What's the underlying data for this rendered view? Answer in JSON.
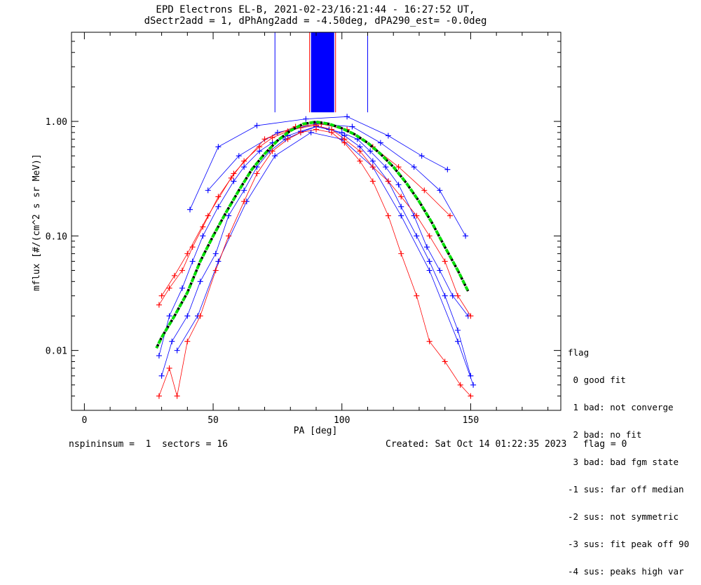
{
  "title_line1": "EPD Electrons EL-B, 2021-02-23/16:21:44 - 16:27:52 UT,",
  "title_line2": "dSectr2add = 1, dPhAng2add = -4.50deg, dPA290_est=  -0.0deg",
  "footer": {
    "left": "nspininsum =  1  sectors = 16",
    "right": "Created: Sat Oct 14 01:22:35 2023   flag = 0"
  },
  "legend": {
    "title": "flag",
    "items": [
      " 0 good fit",
      " 1 bad: not converge",
      " 2 bad: no fit",
      " 3 bad: bad fgm state",
      "-1 sus: far off median",
      "-2 sus: not symmetric",
      "-3 sus: fit peak off 90",
      "-4 sus: peaks high var"
    ]
  },
  "colors": {
    "series_a": "#0000ff",
    "series_b": "#ff0000",
    "fit": "#00dd00",
    "fit_dash": "#000000",
    "axes": "#000000"
  },
  "chart_data": {
    "type": "line",
    "xlabel": "PA [deg]",
    "ylabel": "mflux [#/(cm^2 s sr MeV)]",
    "xlim": [
      -5,
      185
    ],
    "ylim": [
      0.003,
      6
    ],
    "yscale": "log",
    "xticks": [
      0,
      50,
      100,
      150
    ],
    "xtick_labels": [
      "0",
      "50",
      "100",
      "150"
    ],
    "yticks": [
      0.01,
      0.1,
      1.0
    ],
    "ytick_labels": [
      "0.01",
      "0.10",
      "1.00"
    ],
    "grid": false,
    "series": [
      {
        "color": "blue",
        "points": [
          [
            29,
            0.009
          ],
          [
            33,
            0.02
          ],
          [
            38,
            0.035
          ],
          [
            42,
            0.06
          ],
          [
            46,
            0.1
          ],
          [
            52,
            0.18
          ],
          [
            58,
            0.3
          ],
          [
            62,
            0.4
          ],
          [
            68,
            0.55
          ],
          [
            73,
            0.65
          ],
          [
            79,
            0.75
          ],
          [
            84,
            0.82
          ],
          [
            90,
            0.9
          ],
          [
            95,
            0.85
          ],
          [
            100,
            0.8
          ],
          [
            106,
            0.7
          ],
          [
            111,
            0.55
          ],
          [
            117,
            0.4
          ],
          [
            122,
            0.28
          ],
          [
            128,
            0.15
          ],
          [
            133,
            0.08
          ],
          [
            138,
            0.05
          ],
          [
            143,
            0.03
          ],
          [
            149,
            0.02
          ],
          [
            30,
            0.006
          ],
          [
            34,
            0.012
          ],
          [
            40,
            0.02
          ],
          [
            45,
            0.04
          ],
          [
            51,
            0.07
          ],
          [
            56,
            0.15
          ],
          [
            62,
            0.25
          ],
          [
            67,
            0.4
          ],
          [
            72,
            0.55
          ],
          [
            78,
            0.7
          ],
          [
            84,
            0.8
          ],
          [
            90,
            0.9
          ],
          [
            96,
            0.85
          ],
          [
            101,
            0.75
          ],
          [
            107,
            0.6
          ],
          [
            112,
            0.45
          ],
          [
            118,
            0.3
          ],
          [
            123,
            0.18
          ],
          [
            129,
            0.1
          ],
          [
            134,
            0.06
          ],
          [
            140,
            0.03
          ],
          [
            145,
            0.015
          ],
          [
            150,
            0.006
          ],
          [
            41,
            0.17
          ],
          [
            52,
            0.6
          ],
          [
            67,
            0.92
          ],
          [
            86,
            1.05
          ],
          [
            102,
            1.1
          ],
          [
            118,
            0.75
          ],
          [
            131,
            0.5
          ],
          [
            141,
            0.38
          ],
          [
            48,
            0.25
          ],
          [
            60,
            0.5
          ],
          [
            75,
            0.8
          ],
          [
            90,
            0.95
          ],
          [
            104,
            0.9
          ],
          [
            115,
            0.65
          ],
          [
            128,
            0.4
          ],
          [
            138,
            0.25
          ],
          [
            148,
            0.1
          ],
          [
            36,
            0.01
          ],
          [
            44,
            0.02
          ],
          [
            52,
            0.06
          ],
          [
            63,
            0.2
          ],
          [
            74,
            0.5
          ],
          [
            88,
            0.8
          ],
          [
            100,
            0.7
          ],
          [
            112,
            0.4
          ],
          [
            123,
            0.15
          ],
          [
            134,
            0.05
          ],
          [
            145,
            0.012
          ],
          [
            151,
            0.005
          ]
        ]
      },
      {
        "color": "red",
        "points": [
          [
            29,
            0.025
          ],
          [
            33,
            0.035
          ],
          [
            38,
            0.05
          ],
          [
            42,
            0.08
          ],
          [
            46,
            0.12
          ],
          [
            52,
            0.22
          ],
          [
            57,
            0.32
          ],
          [
            62,
            0.45
          ],
          [
            68,
            0.6
          ],
          [
            73,
            0.72
          ],
          [
            79,
            0.82
          ],
          [
            84,
            0.88
          ],
          [
            90,
            0.92
          ],
          [
            96,
            0.85
          ],
          [
            101,
            0.7
          ],
          [
            107,
            0.55
          ],
          [
            112,
            0.4
          ],
          [
            118,
            0.3
          ],
          [
            123,
            0.22
          ],
          [
            129,
            0.15
          ],
          [
            134,
            0.1
          ],
          [
            140,
            0.06
          ],
          [
            145,
            0.03
          ],
          [
            150,
            0.02
          ],
          [
            29,
            0.004
          ],
          [
            33,
            0.007
          ],
          [
            36,
            0.004
          ],
          [
            40,
            0.012
          ],
          [
            45,
            0.02
          ],
          [
            51,
            0.05
          ],
          [
            56,
            0.1
          ],
          [
            62,
            0.2
          ],
          [
            67,
            0.35
          ],
          [
            73,
            0.55
          ],
          [
            79,
            0.7
          ],
          [
            84,
            0.8
          ],
          [
            90,
            0.85
          ],
          [
            96,
            0.8
          ],
          [
            101,
            0.65
          ],
          [
            107,
            0.45
          ],
          [
            112,
            0.3
          ],
          [
            118,
            0.15
          ],
          [
            123,
            0.07
          ],
          [
            129,
            0.03
          ],
          [
            134,
            0.012
          ],
          [
            140,
            0.008
          ],
          [
            146,
            0.005
          ],
          [
            150,
            0.004
          ],
          [
            30,
            0.03
          ],
          [
            35,
            0.045
          ],
          [
            40,
            0.07
          ],
          [
            48,
            0.15
          ],
          [
            58,
            0.35
          ],
          [
            70,
            0.7
          ],
          [
            82,
            0.9
          ],
          [
            92,
            0.95
          ],
          [
            102,
            0.85
          ],
          [
            112,
            0.6
          ],
          [
            122,
            0.4
          ],
          [
            132,
            0.25
          ],
          [
            142,
            0.15
          ]
        ]
      },
      {
        "name": "fit",
        "color": "green",
        "points": [
          [
            28,
            0.0105
          ],
          [
            30,
            0.013
          ],
          [
            35,
            0.02
          ],
          [
            40,
            0.032
          ],
          [
            45,
            0.06
          ],
          [
            50,
            0.1
          ],
          [
            55,
            0.16
          ],
          [
            60,
            0.25
          ],
          [
            65,
            0.38
          ],
          [
            70,
            0.52
          ],
          [
            75,
            0.68
          ],
          [
            80,
            0.83
          ],
          [
            85,
            0.95
          ],
          [
            90,
            0.99
          ],
          [
            95,
            0.95
          ],
          [
            100,
            0.87
          ],
          [
            105,
            0.77
          ],
          [
            110,
            0.65
          ],
          [
            115,
            0.52
          ],
          [
            120,
            0.4
          ],
          [
            125,
            0.29
          ],
          [
            130,
            0.2
          ],
          [
            135,
            0.13
          ],
          [
            140,
            0.08
          ],
          [
            145,
            0.05
          ],
          [
            149,
            0.033
          ]
        ]
      }
    ],
    "vertical_lines": {
      "color": "blue",
      "y_bottom": 1.2,
      "single_x": [
        74,
        110
      ],
      "band_x": [
        88,
        97
      ]
    },
    "annotations": []
  }
}
